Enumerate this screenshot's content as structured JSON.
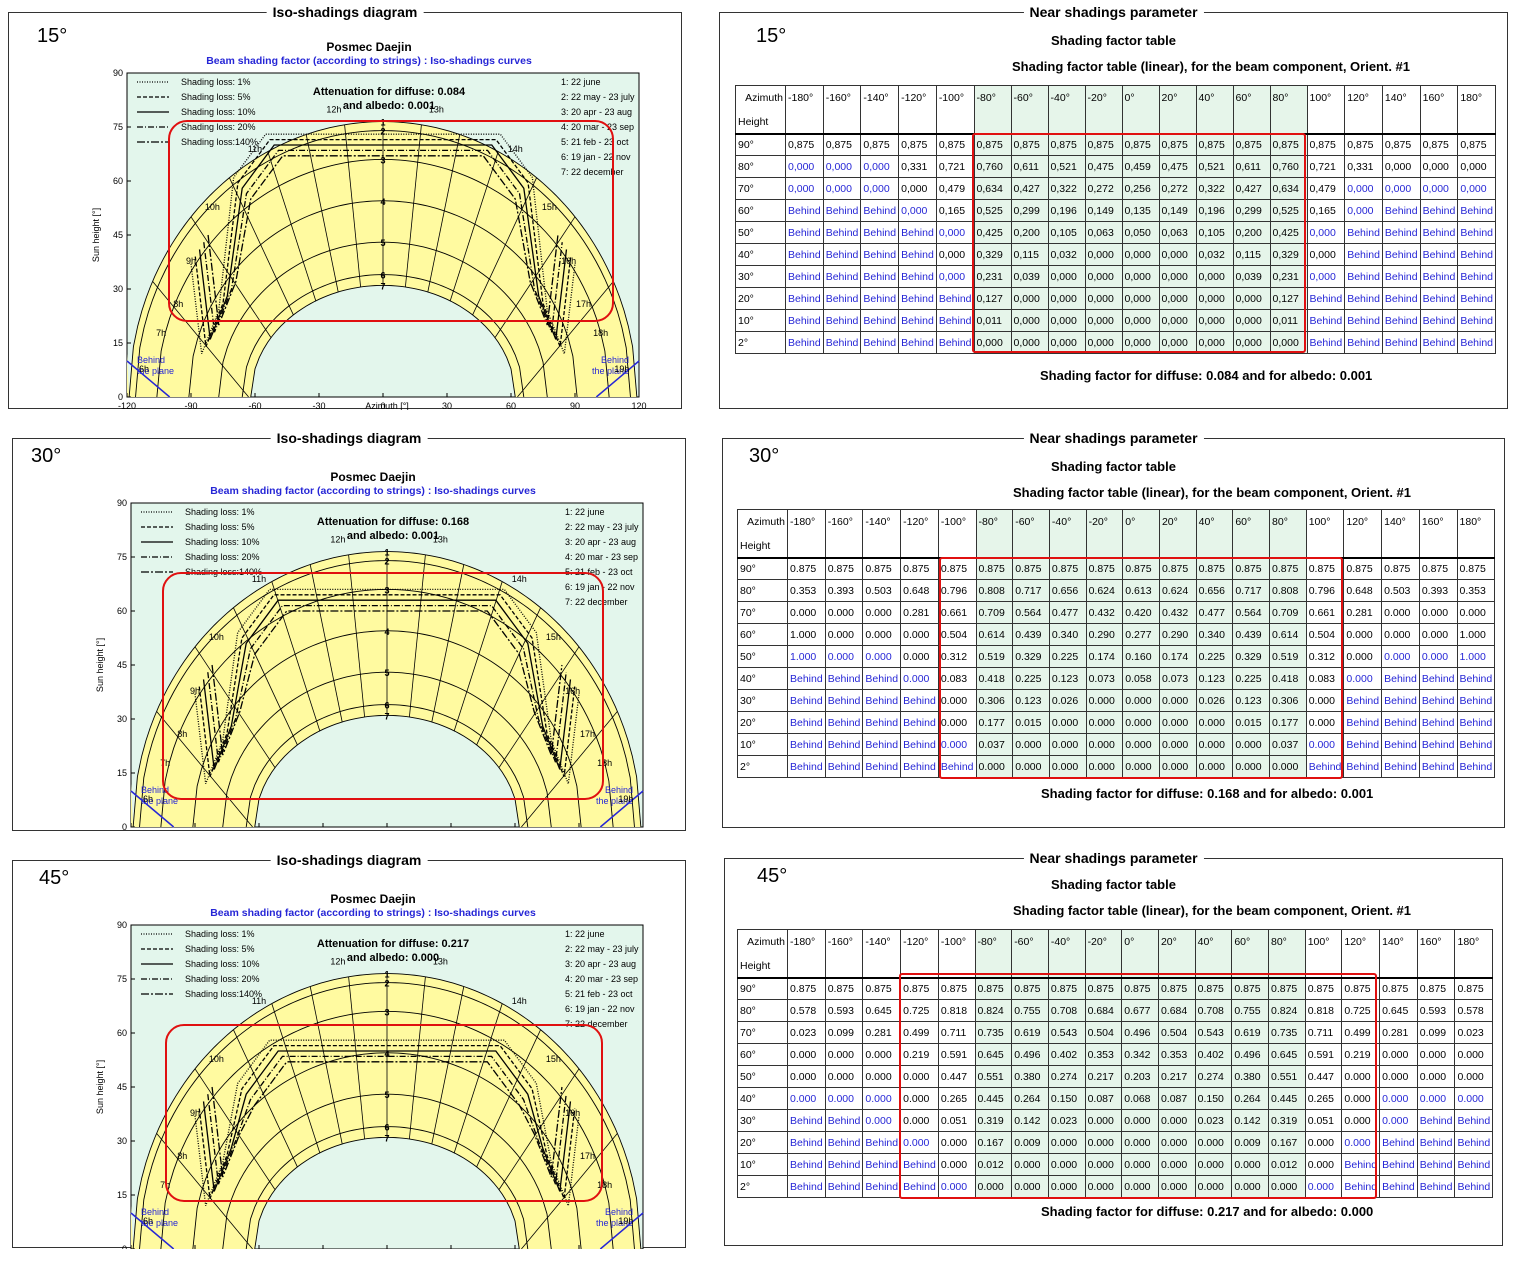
{
  "diagram_title": "Iso-shadings diagram",
  "table_title": "Near shadings parameter",
  "table_subtitle": "Shading factor table",
  "table_caption": "Shading factor table (linear), for the beam component, Orient. #1",
  "chart_title": "Posmec Daejin",
  "chart_subtitle": "Beam shading factor (according to strings) : Iso-shadings curves",
  "xlabel": "Azimuth [°]",
  "ylabel": "Sun height [°]",
  "behind_label": "Behind\nthe plane",
  "colors": {
    "curve_area": "#fffaa0",
    "plot_bg": "#e3f6ec",
    "red": "#e01010",
    "blue": "#2626d6",
    "band": "#e6f5ea"
  },
  "legend_loss": [
    "Shading loss: 1%",
    "Shading loss: 5%",
    "Shading loss: 10%",
    "Shading loss: 20%",
    "Shading loss:140%"
  ],
  "legend_dates": [
    "1: 22 june",
    "2: 22 may - 23 july",
    "3: 20 apr - 23 aug",
    "4: 20 mar - 23 sep",
    "5: 21 feb - 23 oct",
    "6: 19 jan - 22 nov",
    "7: 22 december"
  ],
  "hour_labels": [
    "6h",
    "7h",
    "8h",
    "9h",
    "10h",
    "11h",
    "12h",
    "13h",
    "14h",
    "15h",
    "16h",
    "17h",
    "18h",
    "19h"
  ],
  "x_ticks": [
    "-120",
    "-90",
    "-60",
    "-30",
    "0",
    "30",
    "60",
    "90",
    "120"
  ],
  "y_ticks": [
    "0",
    "15",
    "30",
    "45",
    "60",
    "75",
    "90"
  ],
  "azimuth_header": "Azimuth",
  "height_header": "Height",
  "azimuths": [
    "-180°",
    "-160°",
    "-140°",
    "-120°",
    "-100°",
    "-80°",
    "-60°",
    "-40°",
    "-20°",
    "0°",
    "20°",
    "40°",
    "60°",
    "80°",
    "100°",
    "120°",
    "140°",
    "160°",
    "180°"
  ],
  "heights": [
    "90°",
    "80°",
    "70°",
    "60°",
    "50°",
    "40°",
    "30°",
    "20°",
    "10°",
    "2°"
  ],
  "panels": [
    {
      "angle": "15°",
      "attenuation_line1": "Attenuation for diffuse: 0.084",
      "attenuation_line2": "and albedo: 0.001",
      "footer": "Shading factor for diffuse:  0.084  and for albedo:  0.001",
      "chart_data": {
        "type": "table",
        "rows": [
          [
            "0,875",
            "0,875",
            "0,875",
            "0,875",
            "0,875",
            "0,875",
            "0,875",
            "0,875",
            "0,875",
            "0,875",
            "0,875",
            "0,875",
            "0,875",
            "0,875",
            "0,875",
            "0,875",
            "0,875",
            "0,875",
            "0,875"
          ],
          [
            "0,000",
            "0,000",
            "0,000",
            "0,331",
            "0,721",
            "0,760",
            "0,611",
            "0,521",
            "0,475",
            "0,459",
            "0,475",
            "0,521",
            "0,611",
            "0,760",
            "0,721",
            "0,331",
            "0,000",
            "0,000",
            "0,000"
          ],
          [
            "0,000",
            "0,000",
            "0,000",
            "0,000",
            "0,479",
            "0,634",
            "0,427",
            "0,322",
            "0,272",
            "0,256",
            "0,272",
            "0,322",
            "0,427",
            "0,634",
            "0,479",
            "0,000",
            "0,000",
            "0,000",
            "0,000"
          ],
          [
            "Behind",
            "Behind",
            "Behind",
            "0,000",
            "0,165",
            "0,525",
            "0,299",
            "0,196",
            "0,149",
            "0,135",
            "0,149",
            "0,196",
            "0,299",
            "0,525",
            "0,165",
            "0,000",
            "Behind",
            "Behind",
            "Behind"
          ],
          [
            "Behind",
            "Behind",
            "Behind",
            "Behind",
            "0,000",
            "0,425",
            "0,200",
            "0,105",
            "0,063",
            "0,050",
            "0,063",
            "0,105",
            "0,200",
            "0,425",
            "0,000",
            "Behind",
            "Behind",
            "Behind",
            "Behind"
          ],
          [
            "Behind",
            "Behind",
            "Behind",
            "Behind",
            "0,000",
            "0,329",
            "0,115",
            "0,032",
            "0,000",
            "0,000",
            "0,000",
            "0,032",
            "0,115",
            "0,329",
            "0,000",
            "Behind",
            "Behind",
            "Behind",
            "Behind"
          ],
          [
            "Behind",
            "Behind",
            "Behind",
            "Behind",
            "0,000",
            "0,231",
            "0,039",
            "0,000",
            "0,000",
            "0,000",
            "0,000",
            "0,000",
            "0,039",
            "0,231",
            "0,000",
            "Behind",
            "Behind",
            "Behind",
            "Behind"
          ],
          [
            "Behind",
            "Behind",
            "Behind",
            "Behind",
            "Behind",
            "0,127",
            "0,000",
            "0,000",
            "0,000",
            "0,000",
            "0,000",
            "0,000",
            "0,000",
            "0,127",
            "Behind",
            "Behind",
            "Behind",
            "Behind",
            "Behind"
          ],
          [
            "Behind",
            "Behind",
            "Behind",
            "Behind",
            "Behind",
            "0,011",
            "0,000",
            "0,000",
            "0,000",
            "0,000",
            "0,000",
            "0,000",
            "0,000",
            "0,011",
            "Behind",
            "Behind",
            "Behind",
            "Behind",
            "Behind"
          ],
          [
            "Behind",
            "Behind",
            "Behind",
            "Behind",
            "Behind",
            "0,000",
            "0,000",
            "0,000",
            "0,000",
            "0,000",
            "0,000",
            "0,000",
            "0,000",
            "0,000",
            "Behind",
            "Behind",
            "Behind",
            "Behind",
            "Behind"
          ]
        ],
        "blue_cells": [
          [
            1,
            0
          ],
          [
            1,
            1
          ],
          [
            1,
            2
          ],
          [
            2,
            0
          ],
          [
            2,
            1
          ],
          [
            2,
            2
          ],
          [
            2,
            15
          ],
          [
            2,
            16
          ],
          [
            2,
            17
          ],
          [
            2,
            18
          ],
          [
            3,
            3
          ],
          [
            3,
            15
          ],
          [
            4,
            4
          ],
          [
            4,
            14
          ],
          [
            6,
            4
          ],
          [
            6,
            14
          ]
        ]
      }
    },
    {
      "angle": "30°",
      "attenuation_line1": "Attenuation for diffuse: 0.168",
      "attenuation_line2": "and albedo: 0.001",
      "footer": "Shading factor for diffuse:  0.168  and for albedo:  0.001",
      "chart_data": {
        "type": "table",
        "rows": [
          [
            "0.875",
            "0.875",
            "0.875",
            "0.875",
            "0.875",
            "0.875",
            "0.875",
            "0.875",
            "0.875",
            "0.875",
            "0.875",
            "0.875",
            "0.875",
            "0.875",
            "0.875",
            "0.875",
            "0.875",
            "0.875",
            "0.875"
          ],
          [
            "0.353",
            "0.393",
            "0.503",
            "0.648",
            "0.796",
            "0.808",
            "0.717",
            "0.656",
            "0.624",
            "0.613",
            "0.624",
            "0.656",
            "0.717",
            "0.808",
            "0.796",
            "0.648",
            "0.503",
            "0.393",
            "0.353"
          ],
          [
            "0.000",
            "0.000",
            "0.000",
            "0.281",
            "0.661",
            "0.709",
            "0.564",
            "0.477",
            "0.432",
            "0.420",
            "0.432",
            "0.477",
            "0.564",
            "0.709",
            "0.661",
            "0.281",
            "0.000",
            "0.000",
            "0.000"
          ],
          [
            "1.000",
            "0.000",
            "0.000",
            "0.000",
            "0.504",
            "0.614",
            "0.439",
            "0.340",
            "0.290",
            "0.277",
            "0.290",
            "0.340",
            "0.439",
            "0.614",
            "0.504",
            "0.000",
            "0.000",
            "0.000",
            "1.000"
          ],
          [
            "1.000",
            "0.000",
            "0.000",
            "0.000",
            "0.312",
            "0.519",
            "0.329",
            "0.225",
            "0.174",
            "0.160",
            "0.174",
            "0.225",
            "0.329",
            "0.519",
            "0.312",
            "0.000",
            "0.000",
            "0.000",
            "1.000"
          ],
          [
            "Behind",
            "Behind",
            "Behind",
            "0.000",
            "0.083",
            "0.418",
            "0.225",
            "0.123",
            "0.073",
            "0.058",
            "0.073",
            "0.123",
            "0.225",
            "0.418",
            "0.083",
            "0.000",
            "Behind",
            "Behind",
            "Behind"
          ],
          [
            "Behind",
            "Behind",
            "Behind",
            "Behind",
            "0.000",
            "0.306",
            "0.123",
            "0.026",
            "0.000",
            "0.000",
            "0.000",
            "0.026",
            "0.123",
            "0.306",
            "0.000",
            "Behind",
            "Behind",
            "Behind",
            "Behind"
          ],
          [
            "Behind",
            "Behind",
            "Behind",
            "Behind",
            "0.000",
            "0.177",
            "0.015",
            "0.000",
            "0.000",
            "0.000",
            "0.000",
            "0.000",
            "0.015",
            "0.177",
            "0.000",
            "Behind",
            "Behind",
            "Behind",
            "Behind"
          ],
          [
            "Behind",
            "Behind",
            "Behind",
            "Behind",
            "0.000",
            "0.037",
            "0.000",
            "0.000",
            "0.000",
            "0.000",
            "0.000",
            "0.000",
            "0.000",
            "0.037",
            "0.000",
            "Behind",
            "Behind",
            "Behind",
            "Behind"
          ],
          [
            "Behind",
            "Behind",
            "Behind",
            "Behind",
            "Behind",
            "0.000",
            "0.000",
            "0.000",
            "0.000",
            "0.000",
            "0.000",
            "0.000",
            "0.000",
            "0.000",
            "Behind",
            "Behind",
            "Behind",
            "Behind",
            "Behind"
          ]
        ],
        "blue_cells": [
          [
            4,
            0
          ],
          [
            4,
            1
          ],
          [
            4,
            2
          ],
          [
            4,
            16
          ],
          [
            4,
            17
          ],
          [
            4,
            18
          ],
          [
            5,
            3
          ],
          [
            5,
            15
          ],
          [
            8,
            4
          ],
          [
            8,
            14
          ]
        ]
      }
    },
    {
      "angle": "45°",
      "attenuation_line1": "Attenuation for diffuse: 0.217",
      "attenuation_line2": "and albedo: 0.000",
      "footer": "Shading factor for diffuse:  0.217  and for albedo:  0.000",
      "chart_data": {
        "type": "table",
        "rows": [
          [
            "0.875",
            "0.875",
            "0.875",
            "0.875",
            "0.875",
            "0.875",
            "0.875",
            "0.875",
            "0.875",
            "0.875",
            "0.875",
            "0.875",
            "0.875",
            "0.875",
            "0.875",
            "0.875",
            "0.875",
            "0.875",
            "0.875"
          ],
          [
            "0.578",
            "0.593",
            "0.645",
            "0.725",
            "0.818",
            "0.824",
            "0.755",
            "0.708",
            "0.684",
            "0.677",
            "0.684",
            "0.708",
            "0.755",
            "0.824",
            "0.818",
            "0.725",
            "0.645",
            "0.593",
            "0.578"
          ],
          [
            "0.023",
            "0.099",
            "0.281",
            "0.499",
            "0.711",
            "0.735",
            "0.619",
            "0.543",
            "0.504",
            "0.496",
            "0.504",
            "0.543",
            "0.619",
            "0.735",
            "0.711",
            "0.499",
            "0.281",
            "0.099",
            "0.023"
          ],
          [
            "0.000",
            "0.000",
            "0.000",
            "0.219",
            "0.591",
            "0.645",
            "0.496",
            "0.402",
            "0.353",
            "0.342",
            "0.353",
            "0.402",
            "0.496",
            "0.645",
            "0.591",
            "0.219",
            "0.000",
            "0.000",
            "0.000"
          ],
          [
            "0.000",
            "0.000",
            "0.000",
            "0.000",
            "0.447",
            "0.551",
            "0.380",
            "0.274",
            "0.217",
            "0.203",
            "0.217",
            "0.274",
            "0.380",
            "0.551",
            "0.447",
            "0.000",
            "0.000",
            "0.000",
            "0.000"
          ],
          [
            "0.000",
            "0.000",
            "0.000",
            "0.000",
            "0.265",
            "0.445",
            "0.264",
            "0.150",
            "0.087",
            "0.068",
            "0.087",
            "0.150",
            "0.264",
            "0.445",
            "0.265",
            "0.000",
            "0.000",
            "0.000",
            "0.000"
          ],
          [
            "Behind",
            "Behind",
            "0.000",
            "0.000",
            "0.051",
            "0.319",
            "0.142",
            "0.023",
            "0.000",
            "0.000",
            "0.000",
            "0.023",
            "0.142",
            "0.319",
            "0.051",
            "0.000",
            "0.000",
            "Behind",
            "Behind"
          ],
          [
            "Behind",
            "Behind",
            "Behind",
            "0.000",
            "0.000",
            "0.167",
            "0.009",
            "0.000",
            "0.000",
            "0.000",
            "0.000",
            "0.000",
            "0.009",
            "0.167",
            "0.000",
            "0.000",
            "Behind",
            "Behind",
            "Behind"
          ],
          [
            "Behind",
            "Behind",
            "Behind",
            "Behind",
            "0.000",
            "0.012",
            "0.000",
            "0.000",
            "0.000",
            "0.000",
            "0.000",
            "0.000",
            "0.000",
            "0.012",
            "0.000",
            "Behind",
            "Behind",
            "Behind",
            "Behind"
          ],
          [
            "Behind",
            "Behind",
            "Behind",
            "Behind",
            "0.000",
            "0.000",
            "0.000",
            "0.000",
            "0.000",
            "0.000",
            "0.000",
            "0.000",
            "0.000",
            "0.000",
            "0.000",
            "Behind",
            "Behind",
            "Behind",
            "Behind"
          ]
        ],
        "blue_cells": [
          [
            5,
            0
          ],
          [
            5,
            1
          ],
          [
            5,
            2
          ],
          [
            5,
            16
          ],
          [
            5,
            17
          ],
          [
            5,
            18
          ],
          [
            6,
            2
          ],
          [
            6,
            16
          ],
          [
            7,
            3
          ],
          [
            7,
            15
          ],
          [
            9,
            4
          ],
          [
            9,
            14
          ]
        ]
      }
    }
  ]
}
